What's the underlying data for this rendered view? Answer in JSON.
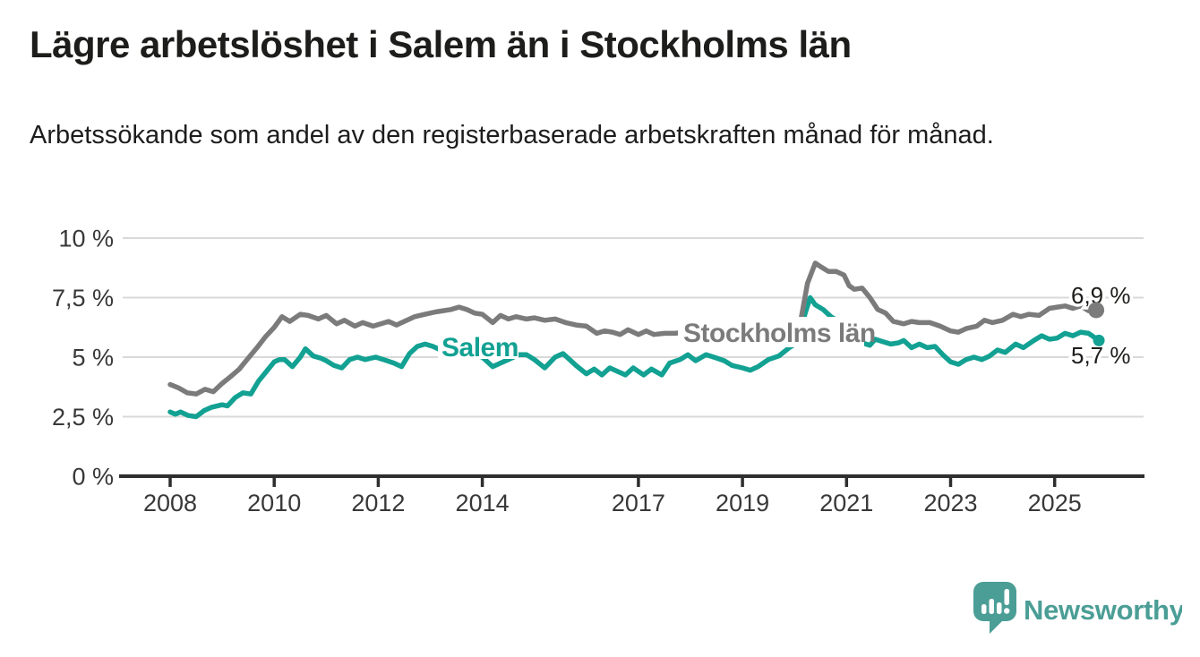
{
  "header": {
    "title": "Lägre arbetslöshet i Salem än i Stockholms län",
    "subtitle": "Arbetssökande som andel av den registerbaserade arbetskraften månad för månad."
  },
  "colors": {
    "stockholm_line": "#7b7b7b",
    "salem_line": "#12a192",
    "grid": "#d9d9d9",
    "axis": "#2e2e2e",
    "tick_text": "#383838",
    "annotation_text": "#1d1d1b",
    "brand_teal": "#4b9e96",
    "background": "#ffffff"
  },
  "footer": {
    "brand": "Newsworthy",
    "brand_icon": "speech-bubble-bar-chart-icon"
  },
  "chart_data": {
    "type": "line",
    "title": "Lägre arbetslöshet i Salem än i Stockholms län",
    "subtitle": "Arbetssökande som andel av den registerbaserade arbetskraften månad för månad.",
    "unit": "%",
    "decimal_separator": ",",
    "grid": true,
    "legend_position": "inline-labels",
    "ylim": [
      0,
      10
    ],
    "xlim": [
      2007.1,
      2026.4
    ],
    "y_ticks": [
      {
        "value": 0,
        "label": "0 %"
      },
      {
        "value": 2.5,
        "label": "2,5 %"
      },
      {
        "value": 5,
        "label": "5 %"
      },
      {
        "value": 7.5,
        "label": "7,5 %"
      },
      {
        "value": 10,
        "label": "10 %"
      }
    ],
    "x_ticks": [
      {
        "value": 2008,
        "label": "2008"
      },
      {
        "value": 2010,
        "label": "2010"
      },
      {
        "value": 2012,
        "label": "2012"
      },
      {
        "value": 2014,
        "label": "2014"
      },
      {
        "value": 2017,
        "label": "2017"
      },
      {
        "value": 2019,
        "label": "2019"
      },
      {
        "value": 2021,
        "label": "2021"
      },
      {
        "value": 2023,
        "label": "2023"
      },
      {
        "value": 2025,
        "label": "2025"
      }
    ],
    "series": [
      {
        "name": "Salem",
        "color": "#12a192",
        "end_label": "5,7 %",
        "end_value": 5.7,
        "points": [
          [
            2008.0,
            2.7
          ],
          [
            2008.1,
            2.6
          ],
          [
            2008.2,
            2.7
          ],
          [
            2008.35,
            2.55
          ],
          [
            2008.5,
            2.5
          ],
          [
            2008.65,
            2.75
          ],
          [
            2008.8,
            2.9
          ],
          [
            2009.0,
            3.0
          ],
          [
            2009.1,
            2.95
          ],
          [
            2009.25,
            3.3
          ],
          [
            2009.4,
            3.5
          ],
          [
            2009.55,
            3.45
          ],
          [
            2009.7,
            4.0
          ],
          [
            2009.85,
            4.4
          ],
          [
            2010.0,
            4.8
          ],
          [
            2010.1,
            4.9
          ],
          [
            2010.2,
            4.9
          ],
          [
            2010.35,
            4.6
          ],
          [
            2010.5,
            5.0
          ],
          [
            2010.6,
            5.35
          ],
          [
            2010.75,
            5.05
          ],
          [
            2010.9,
            4.95
          ],
          [
            2011.0,
            4.85
          ],
          [
            2011.15,
            4.65
          ],
          [
            2011.3,
            4.55
          ],
          [
            2011.45,
            4.9
          ],
          [
            2011.6,
            5.0
          ],
          [
            2011.75,
            4.9
          ],
          [
            2011.95,
            5.0
          ],
          [
            2012.1,
            4.9
          ],
          [
            2012.3,
            4.75
          ],
          [
            2012.45,
            4.6
          ],
          [
            2012.6,
            5.15
          ],
          [
            2012.75,
            5.45
          ],
          [
            2012.9,
            5.55
          ],
          [
            2013.05,
            5.45
          ],
          [
            2013.2,
            5.3
          ],
          [
            2013.4,
            5.2
          ],
          [
            2013.6,
            5.25
          ],
          [
            2013.8,
            5.1
          ],
          [
            2014.0,
            5.0
          ],
          [
            2014.2,
            4.6
          ],
          [
            2014.35,
            4.75
          ],
          [
            2014.5,
            4.9
          ],
          [
            2014.7,
            5.1
          ],
          [
            2014.85,
            5.1
          ],
          [
            2015.0,
            4.9
          ],
          [
            2015.2,
            4.55
          ],
          [
            2015.4,
            5.0
          ],
          [
            2015.55,
            5.15
          ],
          [
            2015.8,
            4.65
          ],
          [
            2016.0,
            4.3
          ],
          [
            2016.15,
            4.5
          ],
          [
            2016.3,
            4.25
          ],
          [
            2016.45,
            4.55
          ],
          [
            2016.6,
            4.4
          ],
          [
            2016.75,
            4.25
          ],
          [
            2016.9,
            4.55
          ],
          [
            2017.1,
            4.25
          ],
          [
            2017.25,
            4.5
          ],
          [
            2017.45,
            4.25
          ],
          [
            2017.6,
            4.75
          ],
          [
            2017.8,
            4.9
          ],
          [
            2017.95,
            5.1
          ],
          [
            2018.1,
            4.85
          ],
          [
            2018.3,
            5.1
          ],
          [
            2018.45,
            5.0
          ],
          [
            2018.65,
            4.85
          ],
          [
            2018.8,
            4.65
          ],
          [
            2019.0,
            4.55
          ],
          [
            2019.15,
            4.45
          ],
          [
            2019.3,
            4.6
          ],
          [
            2019.5,
            4.9
          ],
          [
            2019.7,
            5.05
          ],
          [
            2019.9,
            5.4
          ],
          [
            2020.05,
            5.6
          ],
          [
            2020.2,
            6.8
          ],
          [
            2020.3,
            7.5
          ],
          [
            2020.4,
            7.2
          ],
          [
            2020.55,
            7.0
          ],
          [
            2020.7,
            6.7
          ],
          [
            2020.85,
            6.5
          ],
          [
            2021.0,
            6.2
          ],
          [
            2021.15,
            5.9
          ],
          [
            2021.3,
            5.6
          ],
          [
            2021.45,
            5.5
          ],
          [
            2021.55,
            5.75
          ],
          [
            2021.7,
            5.65
          ],
          [
            2021.85,
            5.55
          ],
          [
            2022.0,
            5.6
          ],
          [
            2022.1,
            5.7
          ],
          [
            2022.25,
            5.4
          ],
          [
            2022.4,
            5.55
          ],
          [
            2022.55,
            5.4
          ],
          [
            2022.7,
            5.45
          ],
          [
            2022.85,
            5.1
          ],
          [
            2023.0,
            4.8
          ],
          [
            2023.15,
            4.7
          ],
          [
            2023.3,
            4.9
          ],
          [
            2023.45,
            5.0
          ],
          [
            2023.6,
            4.9
          ],
          [
            2023.75,
            5.05
          ],
          [
            2023.9,
            5.3
          ],
          [
            2024.05,
            5.2
          ],
          [
            2024.25,
            5.55
          ],
          [
            2024.4,
            5.4
          ],
          [
            2024.6,
            5.7
          ],
          [
            2024.75,
            5.9
          ],
          [
            2024.9,
            5.75
          ],
          [
            2025.05,
            5.8
          ],
          [
            2025.2,
            6.0
          ],
          [
            2025.35,
            5.9
          ],
          [
            2025.5,
            6.05
          ],
          [
            2025.65,
            6.0
          ],
          [
            2025.85,
            5.7
          ]
        ]
      },
      {
        "name": "Stockholms län",
        "color": "#7b7b7b",
        "end_label": "6,9 %",
        "end_value": 6.9,
        "points": [
          [
            2008.0,
            3.85
          ],
          [
            2008.17,
            3.7
          ],
          [
            2008.33,
            3.5
          ],
          [
            2008.5,
            3.45
          ],
          [
            2008.67,
            3.65
          ],
          [
            2008.83,
            3.55
          ],
          [
            2009.0,
            3.9
          ],
          [
            2009.17,
            4.2
          ],
          [
            2009.33,
            4.5
          ],
          [
            2009.5,
            4.95
          ],
          [
            2009.67,
            5.4
          ],
          [
            2009.83,
            5.85
          ],
          [
            2010.0,
            6.25
          ],
          [
            2010.15,
            6.7
          ],
          [
            2010.3,
            6.5
          ],
          [
            2010.5,
            6.8
          ],
          [
            2010.65,
            6.75
          ],
          [
            2010.85,
            6.6
          ],
          [
            2011.0,
            6.75
          ],
          [
            2011.2,
            6.4
          ],
          [
            2011.35,
            6.55
          ],
          [
            2011.55,
            6.3
          ],
          [
            2011.7,
            6.45
          ],
          [
            2011.9,
            6.3
          ],
          [
            2012.05,
            6.4
          ],
          [
            2012.2,
            6.5
          ],
          [
            2012.35,
            6.35
          ],
          [
            2012.5,
            6.5
          ],
          [
            2012.7,
            6.7
          ],
          [
            2012.9,
            6.8
          ],
          [
            2013.1,
            6.9
          ],
          [
            2013.25,
            6.95
          ],
          [
            2013.4,
            7.0
          ],
          [
            2013.55,
            7.1
          ],
          [
            2013.7,
            7.0
          ],
          [
            2013.85,
            6.85
          ],
          [
            2014.0,
            6.8
          ],
          [
            2014.2,
            6.45
          ],
          [
            2014.35,
            6.75
          ],
          [
            2014.5,
            6.6
          ],
          [
            2014.65,
            6.7
          ],
          [
            2014.85,
            6.6
          ],
          [
            2015.0,
            6.65
          ],
          [
            2015.2,
            6.55
          ],
          [
            2015.4,
            6.6
          ],
          [
            2015.6,
            6.45
          ],
          [
            2015.8,
            6.35
          ],
          [
            2016.0,
            6.3
          ],
          [
            2016.2,
            6.0
          ],
          [
            2016.35,
            6.1
          ],
          [
            2016.5,
            6.05
          ],
          [
            2016.65,
            5.95
          ],
          [
            2016.8,
            6.15
          ],
          [
            2017.0,
            5.95
          ],
          [
            2017.15,
            6.1
          ],
          [
            2017.3,
            5.95
          ],
          [
            2017.5,
            6.0
          ],
          [
            2017.7,
            6.0
          ],
          [
            2017.9,
            6.05
          ],
          [
            2018.1,
            6.0
          ],
          [
            2018.3,
            6.05
          ],
          [
            2018.5,
            6.0
          ],
          [
            2018.7,
            5.95
          ],
          [
            2018.9,
            6.0
          ],
          [
            2019.1,
            6.05
          ],
          [
            2019.3,
            5.95
          ],
          [
            2019.5,
            5.9
          ],
          [
            2019.7,
            5.95
          ],
          [
            2019.9,
            6.0
          ],
          [
            2020.1,
            6.3
          ],
          [
            2020.25,
            8.1
          ],
          [
            2020.4,
            8.95
          ],
          [
            2020.5,
            8.8
          ],
          [
            2020.65,
            8.6
          ],
          [
            2020.8,
            8.6
          ],
          [
            2020.95,
            8.45
          ],
          [
            2021.05,
            8.0
          ],
          [
            2021.15,
            7.85
          ],
          [
            2021.3,
            7.9
          ],
          [
            2021.45,
            7.5
          ],
          [
            2021.6,
            7.0
          ],
          [
            2021.75,
            6.85
          ],
          [
            2021.9,
            6.5
          ],
          [
            2022.1,
            6.4
          ],
          [
            2022.25,
            6.5
          ],
          [
            2022.4,
            6.45
          ],
          [
            2022.6,
            6.45
          ],
          [
            2022.8,
            6.3
          ],
          [
            2023.0,
            6.1
          ],
          [
            2023.15,
            6.05
          ],
          [
            2023.3,
            6.2
          ],
          [
            2023.5,
            6.3
          ],
          [
            2023.65,
            6.55
          ],
          [
            2023.8,
            6.45
          ],
          [
            2024.0,
            6.55
          ],
          [
            2024.2,
            6.8
          ],
          [
            2024.35,
            6.7
          ],
          [
            2024.5,
            6.8
          ],
          [
            2024.7,
            6.75
          ],
          [
            2024.9,
            7.05
          ],
          [
            2025.05,
            7.1
          ],
          [
            2025.2,
            7.15
          ],
          [
            2025.35,
            7.05
          ],
          [
            2025.5,
            7.15
          ],
          [
            2025.65,
            6.95
          ],
          [
            2025.85,
            6.9
          ]
        ]
      }
    ]
  }
}
